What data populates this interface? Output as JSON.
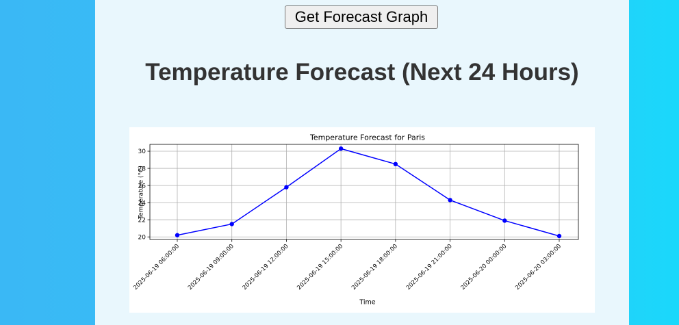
{
  "toolbar": {
    "get_forecast_label": "Get Forecast Graph"
  },
  "page": {
    "title": "Temperature Forecast (Next 24 Hours)"
  },
  "chart_data": {
    "type": "line",
    "title": "Temperature Forecast for Paris",
    "xlabel": "Time",
    "ylabel": "Temperature (°C)",
    "categories": [
      "2025-06-19 06:00:00",
      "2025-06-19 09:00:00",
      "2025-06-19 12:00:00",
      "2025-06-19 15:00:00",
      "2025-06-19 18:00:00",
      "2025-06-19 21:00:00",
      "2025-06-20 00:00:00",
      "2025-06-20 03:00:00"
    ],
    "values": [
      20.2,
      21.5,
      25.8,
      30.3,
      28.5,
      24.3,
      21.9,
      20.1
    ],
    "yticks": [
      20,
      22,
      24,
      26,
      28,
      30
    ],
    "ylim": [
      19.7,
      30.8
    ],
    "grid": true,
    "line_color": "#0000ff"
  }
}
